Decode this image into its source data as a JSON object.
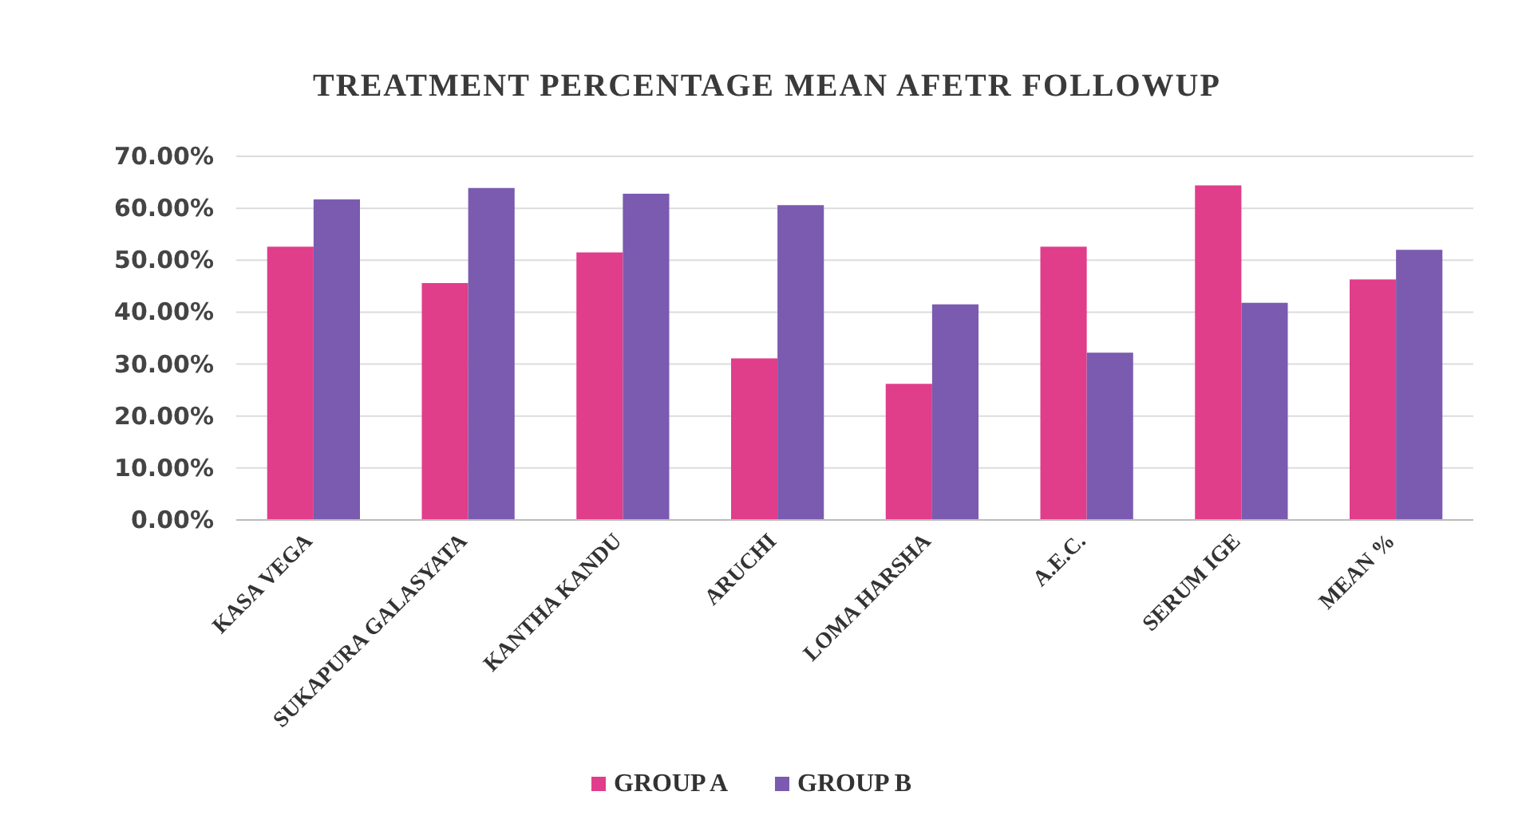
{
  "chart_data": {
    "type": "bar",
    "title": "TREATMENT PERCENTAGE MEAN AFETR FOLLOWUP",
    "categories": [
      "KASA VEGA",
      "SUKAPURA GALASYATA",
      "KANTHA KANDU",
      "ARUCHI",
      "LOMA HARSHA",
      "A.E.C.",
      "SERUM IGE",
      "MEAN %"
    ],
    "series": [
      {
        "name": "GROUP A",
        "color": "#e03d8a",
        "values": [
          52.6,
          45.6,
          51.5,
          31.1,
          26.2,
          52.6,
          64.4,
          46.3
        ]
      },
      {
        "name": "GROUP B",
        "color": "#7a5bb0",
        "values": [
          61.7,
          63.9,
          62.8,
          60.6,
          41.5,
          32.2,
          41.8,
          52.0
        ]
      }
    ],
    "ylim": [
      0,
      70
    ],
    "yticks": [
      {
        "value": 0,
        "label": "0.00%"
      },
      {
        "value": 10,
        "label": "10.00%"
      },
      {
        "value": 20,
        "label": "20.00%"
      },
      {
        "value": 30,
        "label": "30.00%"
      },
      {
        "value": 40,
        "label": "40.00%"
      },
      {
        "value": 50,
        "label": "50.00%"
      },
      {
        "value": 60,
        "label": "60.00%"
      },
      {
        "value": 70,
        "label": "70.00%"
      }
    ],
    "grid": "y",
    "legend": "bottom"
  }
}
